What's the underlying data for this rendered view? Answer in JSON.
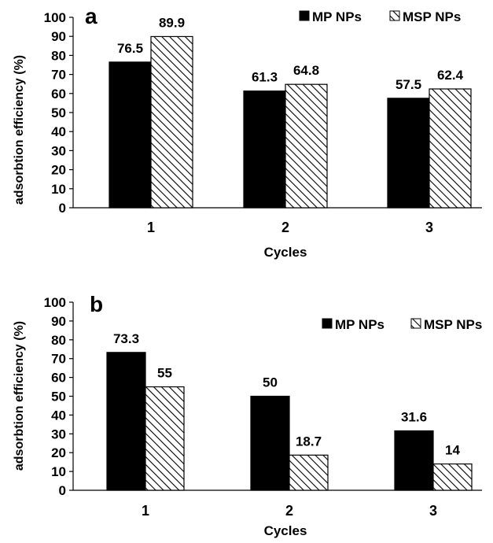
{
  "chart_data": [
    {
      "type": "bar",
      "panel_label": "a",
      "categories": [
        "1",
        "2",
        "3"
      ],
      "series": [
        {
          "name": "MP NPs",
          "values": [
            76.5,
            61.3,
            57.5
          ],
          "labels": [
            "76.5",
            "61.3",
            "57.5"
          ],
          "fill": "solid"
        },
        {
          "name": "MSP NPs",
          "values": [
            89.9,
            64.8,
            62.4
          ],
          "labels": [
            "89.9",
            "64.8",
            "62.4"
          ],
          "fill": "hatch"
        }
      ],
      "xlabel": "Cycles",
      "ylabel": "adsorbtion efficiency (%)",
      "ylim": [
        0,
        100
      ],
      "yticks": [
        "0",
        "10",
        "20",
        "30",
        "40",
        "50",
        "60",
        "70",
        "80",
        "90",
        "100"
      ],
      "grid": false,
      "legend_position": "top-right"
    },
    {
      "type": "bar",
      "panel_label": "b",
      "categories": [
        "1",
        "2",
        "3"
      ],
      "series": [
        {
          "name": "MP NPs",
          "values": [
            73.3,
            50,
            31.6
          ],
          "labels": [
            "73.3",
            "50",
            "31.6"
          ],
          "fill": "solid"
        },
        {
          "name": "MSP NPs",
          "values": [
            55,
            18.7,
            14
          ],
          "labels": [
            "55",
            "18.7",
            "14"
          ],
          "fill": "hatch"
        }
      ],
      "xlabel": "Cycles",
      "ylabel": "adsorbtion efficiency (%)",
      "ylim": [
        0,
        100
      ],
      "yticks": [
        "0",
        "10",
        "20",
        "30",
        "40",
        "50",
        "60",
        "70",
        "80",
        "90",
        "100"
      ],
      "grid": false,
      "legend_position": "top-right"
    }
  ],
  "colors": {
    "bar": "#000000",
    "axis": "#000000",
    "background": "#ffffff"
  }
}
